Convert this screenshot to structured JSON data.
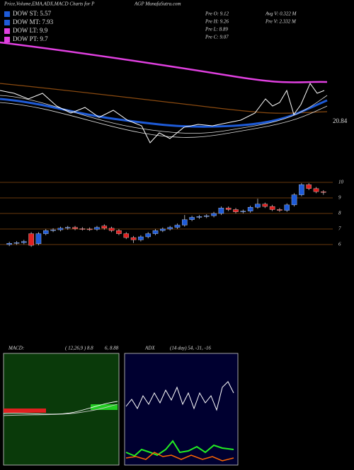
{
  "header": {
    "title": "Price,Volume,EMA,ADX,MACD Charts for P",
    "site": "AGP MunafaSutra.com"
  },
  "legend": [
    {
      "text": "DOW ST: 5.57",
      "color": "#1e5bd8"
    },
    {
      "text": "DOW MT: 7.93",
      "color": "#1e5bd8"
    },
    {
      "text": "DOW LT: 9.9",
      "color": "#e040e0"
    },
    {
      "text": "DOW PT: 9.7",
      "color": "#e040e0"
    }
  ],
  "quote": [
    "Pre  O: 9.12",
    "Pre  H: 9.26",
    "Pre  L: 8.89",
    "Pre  C: 9.07"
  ],
  "volume": [
    "Avg V: 0.322  M",
    "Pre  V: 2.332  M"
  ],
  "ema_label": "20.84",
  "panels": {
    "macd_title": "MACD:",
    "macd_params": "( 12,26,9 ) 8.8",
    "macd_values": "6, 8.88",
    "adx_title": "ADX",
    "adx_values": "(14 day) 54, -31, -16"
  },
  "chart_data": {
    "type": "candlestick",
    "categories": [
      null,
      null,
      null,
      null,
      null,
      null,
      null,
      null,
      null,
      null,
      null,
      null,
      null,
      null,
      null,
      null,
      null,
      null,
      null,
      null,
      null,
      null,
      null,
      null,
      null,
      null,
      null,
      null,
      null,
      null,
      null,
      null,
      null,
      null,
      null,
      null,
      null,
      null,
      null,
      null,
      null,
      null,
      null,
      null
    ],
    "open": [
      6.0,
      6.08,
      6.12,
      6.7,
      6.05,
      6.7,
      6.9,
      6.95,
      7.05,
      7.1,
      7.02,
      7.0,
      6.98,
      7.2,
      7.05,
      6.9,
      6.7,
      6.45,
      6.3,
      6.5,
      6.7,
      6.9,
      7.0,
      7.1,
      7.25,
      7.6,
      7.75,
      7.8,
      7.85,
      8.0,
      8.35,
      8.25,
      8.1,
      8.15,
      8.4,
      8.6,
      8.45,
      8.25,
      8.2,
      8.55,
      9.2,
      9.85,
      9.6,
      9.4
    ],
    "high": [
      6.18,
      6.22,
      6.3,
      6.8,
      6.8,
      7.0,
      7.05,
      7.15,
      7.2,
      7.2,
      7.12,
      7.1,
      7.2,
      7.3,
      7.15,
      7.0,
      6.8,
      6.55,
      6.6,
      6.8,
      7.0,
      7.1,
      7.2,
      7.35,
      7.9,
      7.85,
      7.9,
      7.95,
      8.1,
      8.45,
      8.45,
      8.35,
      8.25,
      8.5,
      8.95,
      8.7,
      8.55,
      8.35,
      8.65,
      9.3,
      9.95,
      9.95,
      9.7,
      9.5
    ],
    "low": [
      5.9,
      5.98,
      6.02,
      5.85,
      5.95,
      6.6,
      6.8,
      6.85,
      6.95,
      6.92,
      6.9,
      6.88,
      6.88,
      6.95,
      6.8,
      6.6,
      6.35,
      6.1,
      6.2,
      6.4,
      6.6,
      6.8,
      6.9,
      7.0,
      7.15,
      7.5,
      7.65,
      7.7,
      7.75,
      7.9,
      8.15,
      8.0,
      8.0,
      8.05,
      8.3,
      8.35,
      8.15,
      8.1,
      8.1,
      8.45,
      9.1,
      9.5,
      9.3,
      9.2
    ],
    "close": [
      6.08,
      6.12,
      6.2,
      5.95,
      6.7,
      6.9,
      6.95,
      7.05,
      7.1,
      7.02,
      7.0,
      6.98,
      7.1,
      7.05,
      6.9,
      6.7,
      6.45,
      6.3,
      6.5,
      6.7,
      6.9,
      7.0,
      7.1,
      7.25,
      7.6,
      7.75,
      7.8,
      7.85,
      8.0,
      8.35,
      8.25,
      8.1,
      8.15,
      8.4,
      8.6,
      8.45,
      8.25,
      8.2,
      8.55,
      9.2,
      9.85,
      9.6,
      9.4,
      9.35
    ],
    "up_color": "#1e5bd8",
    "down_color": "#e02020",
    "grid_color": "#8a4a10",
    "ylim": [
      5.5,
      10.5
    ],
    "yticks": [
      6,
      7,
      8,
      9,
      10
    ],
    "grid": true
  }
}
